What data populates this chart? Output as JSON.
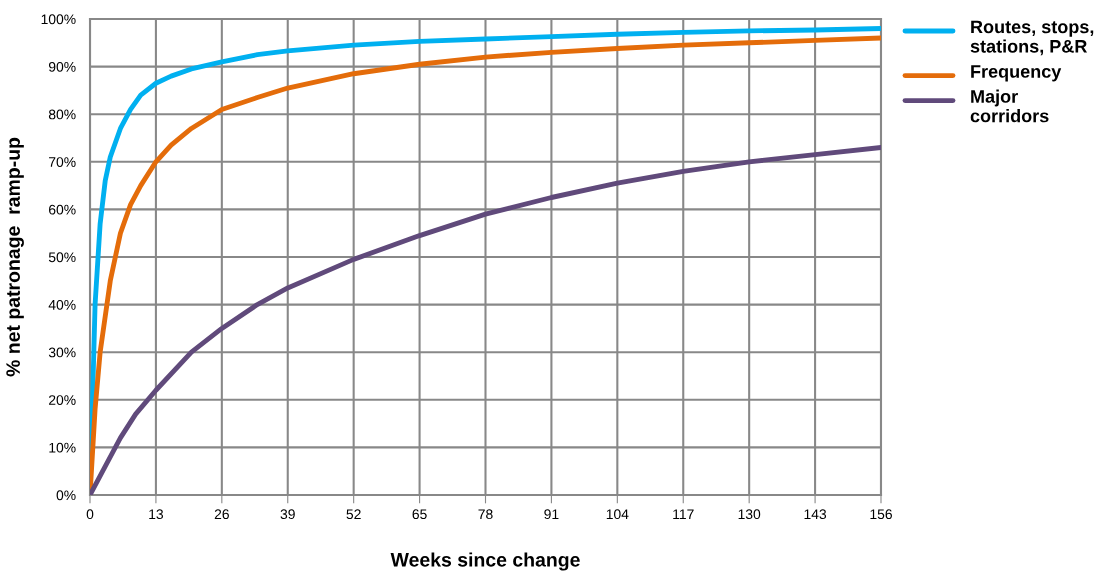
{
  "chart_data": {
    "type": "line",
    "xlabel": "Weeks since change",
    "ylabel": "% net patronage  ramp-up",
    "xlim": [
      0,
      156
    ],
    "xticks": [
      0,
      13,
      26,
      39,
      52,
      65,
      78,
      91,
      104,
      117,
      130,
      143,
      156
    ],
    "ylim": [
      0,
      100
    ],
    "yticks": [
      {
        "value": 0,
        "label": "0%"
      },
      {
        "value": 10,
        "label": "10%"
      },
      {
        "value": 20,
        "label": "20%"
      },
      {
        "value": 30,
        "label": "30%"
      },
      {
        "value": 40,
        "label": "40%"
      },
      {
        "value": 50,
        "label": "50%"
      },
      {
        "value": 60,
        "label": "60%"
      },
      {
        "value": 70,
        "label": "70%"
      },
      {
        "value": 80,
        "label": "80%"
      },
      {
        "value": 90,
        "label": "90%"
      },
      {
        "value": 100,
        "label": "100%"
      }
    ],
    "grid": true,
    "legend": "right",
    "marker": "none",
    "line_style": "solid",
    "series": [
      {
        "name": "Routes, stops, stations, P&R",
        "color": "#00b0f0",
        "x": [
          0,
          1,
          2,
          3,
          4,
          6,
          8,
          10,
          13,
          16,
          20,
          26,
          33,
          39,
          52,
          65,
          78,
          91,
          104,
          117,
          130,
          143,
          156
        ],
        "values": [
          0,
          40,
          57,
          66,
          71,
          77,
          81,
          84,
          86.5,
          88,
          89.5,
          91,
          92.5,
          93.3,
          94.5,
          95.3,
          95.8,
          96.3,
          96.8,
          97.2,
          97.5,
          97.7,
          98
        ]
      },
      {
        "name": "Frequency",
        "color": "#e46c0a",
        "x": [
          0,
          1,
          2,
          4,
          6,
          8,
          10,
          13,
          16,
          20,
          26,
          33,
          39,
          52,
          65,
          78,
          91,
          104,
          117,
          130,
          143,
          156
        ],
        "values": [
          0,
          18,
          30,
          45,
          55,
          61,
          65,
          70,
          73.5,
          77,
          81,
          83.5,
          85.5,
          88.5,
          90.5,
          92,
          93,
          93.8,
          94.5,
          95,
          95.5,
          96
        ]
      },
      {
        "name": "Major corridors",
        "color": "#604a7b",
        "x": [
          0,
          3,
          6,
          9,
          13,
          20,
          26,
          33,
          39,
          52,
          65,
          78,
          91,
          104,
          117,
          130,
          143,
          156
        ],
        "values": [
          0,
          6,
          12,
          17,
          22,
          30,
          35,
          40,
          43.5,
          49.5,
          54.5,
          59,
          62.5,
          65.5,
          68,
          70,
          71.5,
          73
        ]
      }
    ]
  }
}
